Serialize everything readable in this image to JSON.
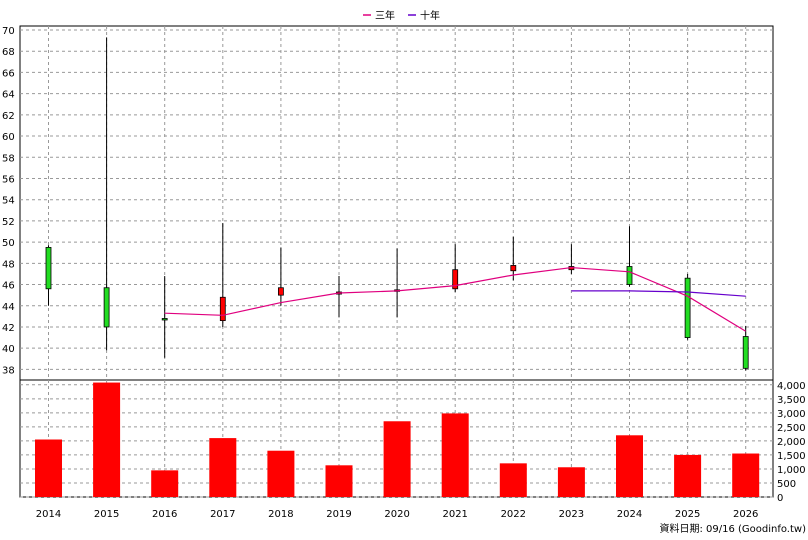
{
  "chart_data": [
    {
      "type": "candlestick",
      "x": [
        "2014",
        "2015",
        "2016",
        "2017",
        "2018",
        "2019",
        "2020",
        "2021",
        "2022",
        "2023",
        "2024",
        "2025",
        "2026"
      ],
      "ylim": [
        37,
        70
      ],
      "yticks": [
        38,
        40,
        42,
        44,
        46,
        48,
        50,
        52,
        54,
        56,
        58,
        60,
        62,
        64,
        66,
        68,
        70
      ],
      "grid": true,
      "legend": {
        "placement": "top-center",
        "entries": [
          {
            "label": "三年",
            "color": "#e0007f"
          },
          {
            "label": "十年",
            "color": "#6600cc"
          }
        ]
      },
      "candles": [
        {
          "x": "2014",
          "open": 45.6,
          "close": 49.5,
          "high": 49.7,
          "low": 44.0,
          "color": "#22dd22"
        },
        {
          "x": "2015",
          "open": 42.0,
          "close": 45.7,
          "high": 69.3,
          "low": 39.8,
          "color": "#22dd22"
        },
        {
          "x": "2016",
          "open": 42.7,
          "close": 42.8,
          "high": 46.8,
          "low": 39.1,
          "color": "#22dd22"
        },
        {
          "x": "2017",
          "open": 42.6,
          "close": 44.8,
          "high": 51.8,
          "low": 42.0,
          "color": "#ff0000"
        },
        {
          "x": "2018",
          "open": 45.0,
          "close": 45.7,
          "high": 49.5,
          "low": 44.0,
          "color": "#ff0000"
        },
        {
          "x": "2019",
          "open": 45.1,
          "close": 45.3,
          "high": 46.8,
          "low": 42.9,
          "color": "#ff0000"
        },
        {
          "x": "2020",
          "open": 45.4,
          "close": 45.5,
          "high": 49.4,
          "low": 42.9,
          "color": "#ff0000"
        },
        {
          "x": "2021",
          "open": 45.6,
          "close": 47.4,
          "high": 49.8,
          "low": 45.3,
          "color": "#ff0000"
        },
        {
          "x": "2022",
          "open": 47.3,
          "close": 47.8,
          "high": 50.5,
          "low": 46.4,
          "color": "#ff0000"
        },
        {
          "x": "2023",
          "open": 47.4,
          "close": 47.7,
          "high": 49.8,
          "low": 47.0,
          "color": "#ff0000"
        },
        {
          "x": "2024",
          "open": 46.0,
          "close": 47.7,
          "high": 51.5,
          "low": 45.8,
          "color": "#22dd22"
        },
        {
          "x": "2025",
          "open": 41.0,
          "close": 46.6,
          "high": 47.0,
          "low": 40.8,
          "color": "#22dd22"
        },
        {
          "x": "2026",
          "open": 38.1,
          "close": 41.1,
          "high": 42.1,
          "low": 37.9,
          "color": "#22dd22"
        }
      ],
      "series": [
        {
          "name": "三年",
          "color": "#e0007f",
          "points": [
            [
              "2016",
              43.3
            ],
            [
              "2017",
              43.1
            ],
            [
              "2018",
              44.3
            ],
            [
              "2019",
              45.2
            ],
            [
              "2020",
              45.4
            ],
            [
              "2021",
              45.9
            ],
            [
              "2022",
              46.9
            ],
            [
              "2023",
              47.6
            ],
            [
              "2024",
              47.2
            ],
            [
              "2025",
              44.9
            ],
            [
              "2026",
              41.6
            ]
          ]
        },
        {
          "name": "十年",
          "color": "#6600cc",
          "points": [
            [
              "2023",
              45.4
            ],
            [
              "2024",
              45.4
            ],
            [
              "2025",
              45.3
            ],
            [
              "2026",
              44.9
            ]
          ]
        }
      ]
    },
    {
      "type": "bar",
      "categories": [
        "2014",
        "2015",
        "2016",
        "2017",
        "2018",
        "2019",
        "2020",
        "2021",
        "2022",
        "2023",
        "2024",
        "2025",
        "2026"
      ],
      "values": [
        2050,
        4080,
        950,
        2100,
        1650,
        1130,
        2700,
        2980,
        1200,
        1060,
        2200,
        1500,
        1550
      ],
      "ylim": [
        0,
        4100
      ],
      "yticks": [
        "0",
        "500",
        "1,000",
        "1,500",
        "2,000",
        "2,500",
        "3,000",
        "3,500",
        "4,000"
      ],
      "bar_color": "#ff0000"
    }
  ],
  "footer": {
    "source": "資料日期: 09/16  (Goodinfo.tw)"
  }
}
